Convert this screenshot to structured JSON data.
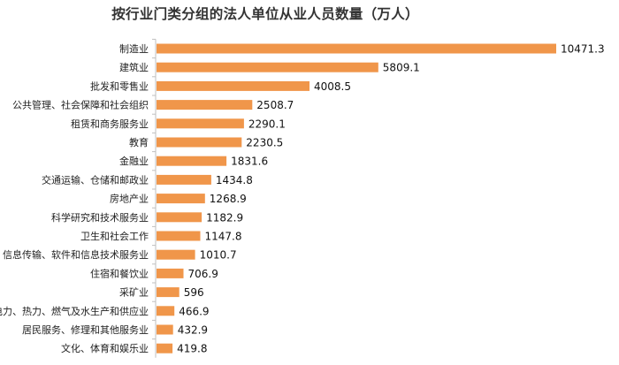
{
  "chart_data": {
    "type": "bar",
    "orientation": "horizontal",
    "title": "按行业门类分组的法人单位从业人员数量（万人）",
    "categories": [
      "制造业",
      "建筑业",
      "批发和零售业",
      "公共管理、社会保障和社会组织",
      "租赁和商务服务业",
      "教育",
      "金融业",
      "交通运输、仓储和邮政业",
      "房地产业",
      "科学研究和技术服务业",
      "卫生和社会工作",
      "信息传输、软件和信息技术服务业",
      "住宿和餐饮业",
      "采矿业",
      "电力、热力、燃气及水生产和供应业",
      "居民服务、修理和其他服务业",
      "文化、体育和娱乐业"
    ],
    "values": [
      10471.3,
      5809.1,
      4008.5,
      2508.7,
      2290.1,
      2230.5,
      1831.6,
      1434.8,
      1268.9,
      1182.9,
      1147.8,
      1010.7,
      706.9,
      596,
      466.9,
      432.9,
      419.8
    ],
    "value_labels": [
      "10471.3",
      "5809.1",
      "4008.5",
      "2508.7",
      "2290.1",
      "2230.5",
      "1831.6",
      "1434.8",
      "1268.9",
      "1182.9",
      "1147.8",
      "1010.7",
      "706.9",
      "596",
      "466.9",
      "432.9",
      "419.8"
    ],
    "bar_color": "#F0964A",
    "axis_color": "#bfbfbf",
    "xlim": [
      0,
      10471.3
    ],
    "grid": false,
    "legend": "none"
  }
}
